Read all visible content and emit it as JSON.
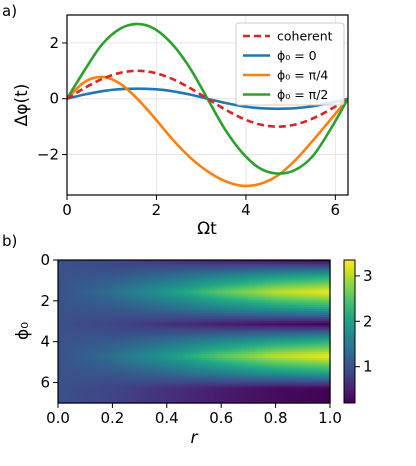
{
  "chart_data": [
    {
      "panel_label": "a)",
      "type": "line",
      "xlabel": "Ωt",
      "ylabel": "Δφ(t)",
      "xlim": [
        0,
        6.2832
      ],
      "ylim": [
        -3.45,
        3.0
      ],
      "xticks": [
        "0",
        "2",
        "4",
        "6"
      ],
      "xtick_values": [
        0,
        2,
        4,
        6
      ],
      "yticks": [
        "−2",
        "0",
        "2"
      ],
      "ytick_values": [
        -2,
        0,
        2
      ],
      "grid": true,
      "legend_position": "top-right",
      "x": [
        0,
        0.3927,
        0.7854,
        1.1781,
        1.5708,
        1.9635,
        2.3562,
        2.7489,
        3.1416,
        3.5343,
        3.927,
        4.3197,
        4.7124,
        5.1051,
        5.4978,
        5.8905,
        6.2832
      ],
      "series": [
        {
          "name": "coherent",
          "color": "#d62728",
          "dashed": true,
          "values": [
            0,
            0.383,
            0.707,
            0.924,
            1.0,
            0.924,
            0.707,
            0.383,
            0,
            -0.383,
            -0.707,
            -0.924,
            -1.0,
            -0.924,
            -0.707,
            -0.383,
            0
          ]
        },
        {
          "name": "ϕ₀ = 0",
          "color": "#1f77b4",
          "dashed": false,
          "values": [
            0,
            0.15,
            0.27,
            0.34,
            0.36,
            0.34,
            0.27,
            0.15,
            0,
            -0.15,
            -0.27,
            -0.34,
            -0.36,
            -0.34,
            -0.27,
            -0.15,
            0
          ]
        },
        {
          "name": "ϕ₀ = π/4",
          "color": "#ff7f0e",
          "dashed": false,
          "values": [
            0,
            0.6,
            0.78,
            0.55,
            0.0,
            -0.7,
            -1.45,
            -2.1,
            -2.6,
            -2.95,
            -3.12,
            -3.05,
            -2.75,
            -2.2,
            -1.5,
            -0.75,
            0
          ]
        },
        {
          "name": "ϕ₀ = π/2",
          "color": "#2ca02c",
          "dashed": false,
          "values": [
            0,
            1.02,
            1.95,
            2.5,
            2.68,
            2.5,
            1.95,
            1.1,
            0,
            -1.1,
            -1.95,
            -2.5,
            -2.68,
            -2.55,
            -2.05,
            -1.1,
            0
          ]
        }
      ]
    },
    {
      "panel_label": "b)",
      "type": "heatmap",
      "xlabel": "r",
      "ylabel": "ϕ₀",
      "xlim": [
        0,
        1
      ],
      "ylim": [
        0,
        7
      ],
      "y_inverted": true,
      "xticks": [
        "0.0",
        "0.2",
        "0.4",
        "0.6",
        "0.8",
        "1.0"
      ],
      "xtick_values": [
        0,
        0.2,
        0.4,
        0.6,
        0.8,
        1.0
      ],
      "yticks": [
        "0",
        "2",
        "4",
        "6"
      ],
      "ytick_values": [
        0,
        2,
        4,
        6
      ],
      "colormap": "viridis",
      "colorbar_ticks": [
        "1",
        "2",
        "3"
      ],
      "colorbar_tick_values": [
        1,
        2,
        3
      ],
      "color_range": [
        0.2,
        3.35
      ],
      "grid": false,
      "r_samples": [
        0.0,
        0.2,
        0.4,
        0.6,
        0.8,
        1.0
      ],
      "phi0_samples": [
        0.0,
        0.785,
        1.571,
        2.356,
        3.142,
        3.927,
        4.712,
        5.498,
        6.283
      ],
      "values": [
        [
          1.0,
          0.85,
          0.65,
          0.45,
          0.3,
          0.2
        ],
        [
          1.0,
          1.08,
          1.3,
          1.6,
          1.9,
          2.1
        ],
        [
          1.0,
          1.35,
          1.9,
          2.55,
          3.05,
          3.3
        ],
        [
          1.0,
          1.08,
          1.3,
          1.6,
          1.9,
          2.1
        ],
        [
          1.0,
          0.85,
          0.65,
          0.45,
          0.3,
          0.2
        ],
        [
          1.0,
          1.08,
          1.3,
          1.6,
          1.9,
          2.1
        ],
        [
          1.0,
          1.35,
          1.9,
          2.55,
          3.05,
          3.3
        ],
        [
          1.0,
          1.08,
          1.3,
          1.6,
          1.9,
          2.1
        ],
        [
          1.0,
          0.85,
          0.65,
          0.45,
          0.3,
          0.2
        ]
      ]
    }
  ]
}
